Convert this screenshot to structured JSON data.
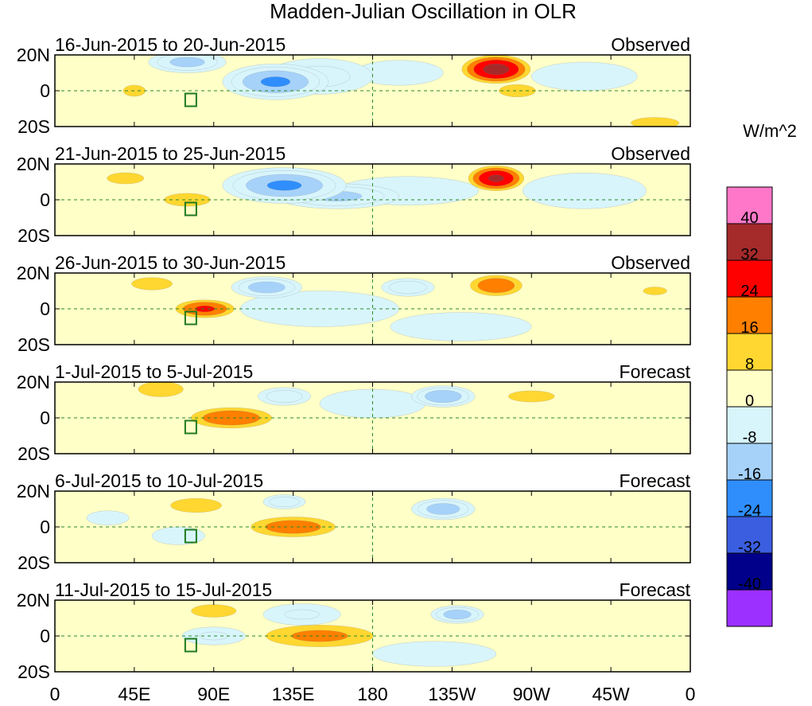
{
  "chart_data": {
    "type": "heatmap",
    "title": "Madden-Julian Oscillation in OLR",
    "colorbar": {
      "units": "W/m^2",
      "tick_labels": [
        "40",
        "32",
        "24",
        "16",
        "8",
        "0",
        "-8",
        "-16",
        "-24",
        "-32",
        "-40"
      ],
      "levels_top_to_bottom": [
        {
          "color": "#ff77c8"
        },
        {
          "color": "#a52a2a"
        },
        {
          "color": "#ff0000"
        },
        {
          "color": "#ff7f00"
        },
        {
          "color": "#ffd730"
        },
        {
          "color": "#ffffc8"
        },
        {
          "color": "#d8f5fc"
        },
        {
          "color": "#a6d2fa"
        },
        {
          "color": "#2f8efc"
        },
        {
          "color": "#3b5ee0"
        },
        {
          "color": "#00008b"
        },
        {
          "color": "#9b30ff"
        }
      ]
    },
    "x_tick_labels": [
      "0",
      "45E",
      "90E",
      "135E",
      "180",
      "135W",
      "90W",
      "45W",
      "0"
    ],
    "x_ticks_lon": [
      0,
      45,
      90,
      135,
      180,
      225,
      270,
      315,
      360
    ],
    "y_tick_labels": [
      "20N",
      "0",
      "20S"
    ],
    "y_ticks_lat": [
      20,
      0,
      -20
    ],
    "xlim": [
      0,
      360
    ],
    "ylim": [
      -20,
      20
    ],
    "panels": [
      {
        "period": "16-Jun-2015 to 20-Jun-2015",
        "status": "Observed",
        "anomalies": [
          {
            "lon": 250,
            "lat": 12,
            "rx": 22,
            "ry": 9,
            "v": 34
          },
          {
            "lon": 262,
            "lat": 0,
            "rx": 18,
            "ry": 6,
            "v": 10
          },
          {
            "lon": 45,
            "lat": 0,
            "rx": 12,
            "ry": 6,
            "v": 9
          },
          {
            "lon": 340,
            "lat": -18,
            "rx": 22,
            "ry": 5,
            "v": 11
          },
          {
            "lon": 125,
            "lat": 5,
            "rx": 30,
            "ry": 10,
            "v": -24
          },
          {
            "lon": 75,
            "lat": 16,
            "rx": 22,
            "ry": 6,
            "v": -18
          },
          {
            "lon": 150,
            "lat": 8,
            "rx": 30,
            "ry": 10,
            "v": -10
          },
          {
            "lon": 195,
            "lat": 10,
            "rx": 25,
            "ry": 7,
            "v": -5
          },
          {
            "lon": 300,
            "lat": 8,
            "rx": 30,
            "ry": 8,
            "v": -5
          }
        ]
      },
      {
        "period": "21-Jun-2015 to 25-Jun-2015",
        "status": "Observed",
        "anomalies": [
          {
            "lon": 250,
            "lat": 12,
            "rx": 18,
            "ry": 8,
            "v": 32
          },
          {
            "lon": 75,
            "lat": 0,
            "rx": 18,
            "ry": 5,
            "v": 15
          },
          {
            "lon": 40,
            "lat": 12,
            "rx": 20,
            "ry": 6,
            "v": 9
          },
          {
            "lon": 130,
            "lat": 8,
            "rx": 35,
            "ry": 10,
            "v": -24
          },
          {
            "lon": 160,
            "lat": 2,
            "rx": 35,
            "ry": 7,
            "v": -17
          },
          {
            "lon": 200,
            "lat": 5,
            "rx": 40,
            "ry": 8,
            "v": -7
          },
          {
            "lon": 300,
            "lat": 5,
            "rx": 35,
            "ry": 10,
            "v": -5
          }
        ]
      },
      {
        "period": "26-Jun-2015 to 30-Jun-2015",
        "status": "Observed",
        "anomalies": [
          {
            "lon": 85,
            "lat": 0,
            "rx": 20,
            "ry": 6,
            "v": 24
          },
          {
            "lon": 55,
            "lat": 14,
            "rx": 20,
            "ry": 6,
            "v": 10
          },
          {
            "lon": 250,
            "lat": 13,
            "rx": 18,
            "ry": 7,
            "v": 22
          },
          {
            "lon": 340,
            "lat": 10,
            "rx": 15,
            "ry": 5,
            "v": 8
          },
          {
            "lon": 120,
            "lat": 12,
            "rx": 20,
            "ry": 6,
            "v": -20
          },
          {
            "lon": 200,
            "lat": 12,
            "rx": 15,
            "ry": 5,
            "v": -14
          },
          {
            "lon": 150,
            "lat": 0,
            "rx": 45,
            "ry": 10,
            "v": -6
          },
          {
            "lon": 230,
            "lat": -10,
            "rx": 40,
            "ry": 8,
            "v": -4
          }
        ]
      },
      {
        "period": "1-Jul-2015 to 5-Jul-2015",
        "status": "Forecast",
        "anomalies": [
          {
            "lon": 100,
            "lat": 0,
            "rx": 28,
            "ry": 7,
            "v": 22
          },
          {
            "lon": 60,
            "lat": 16,
            "rx": 18,
            "ry": 6,
            "v": 14
          },
          {
            "lon": 270,
            "lat": 12,
            "rx": 25,
            "ry": 6,
            "v": 9
          },
          {
            "lon": 30,
            "lat": -5,
            "rx": 15,
            "ry": 5,
            "v": 6
          },
          {
            "lon": 220,
            "lat": 12,
            "rx": 18,
            "ry": 6,
            "v": -22
          },
          {
            "lon": 130,
            "lat": 12,
            "rx": 15,
            "ry": 5,
            "v": -13
          },
          {
            "lon": 180,
            "lat": 8,
            "rx": 30,
            "ry": 8,
            "v": -5
          }
        ]
      },
      {
        "period": "6-Jul-2015 to 10-Jul-2015",
        "status": "Forecast",
        "anomalies": [
          {
            "lon": 135,
            "lat": 0,
            "rx": 30,
            "ry": 7,
            "v": 20
          },
          {
            "lon": 80,
            "lat": 12,
            "rx": 22,
            "ry": 6,
            "v": 12
          },
          {
            "lon": 300,
            "lat": 6,
            "rx": 22,
            "ry": 5,
            "v": 6
          },
          {
            "lon": 220,
            "lat": 10,
            "rx": 18,
            "ry": 6,
            "v": -20
          },
          {
            "lon": 130,
            "lat": 14,
            "rx": 12,
            "ry": 4,
            "v": -14
          },
          {
            "lon": 70,
            "lat": -5,
            "rx": 15,
            "ry": 5,
            "v": -6
          },
          {
            "lon": 30,
            "lat": 5,
            "rx": 12,
            "ry": 4,
            "v": -5
          }
        ]
      },
      {
        "period": "11-Jul-2015 to 15-Jul-2015",
        "status": "Forecast",
        "anomalies": [
          {
            "lon": 150,
            "lat": 0,
            "rx": 40,
            "ry": 8,
            "v": 17
          },
          {
            "lon": 90,
            "lat": 14,
            "rx": 18,
            "ry": 5,
            "v": 14
          },
          {
            "lon": 60,
            "lat": 0,
            "rx": 15,
            "ry": 5,
            "v": 7
          },
          {
            "lon": 228,
            "lat": 12,
            "rx": 15,
            "ry": 5,
            "v": -20
          },
          {
            "lon": 90,
            "lat": 0,
            "rx": 18,
            "ry": 5,
            "v": -8
          },
          {
            "lon": 140,
            "lat": 12,
            "rx": 22,
            "ry": 6,
            "v": -8
          },
          {
            "lon": 215,
            "lat": -10,
            "rx": 35,
            "ry": 7,
            "v": -4
          }
        ]
      }
    ]
  }
}
